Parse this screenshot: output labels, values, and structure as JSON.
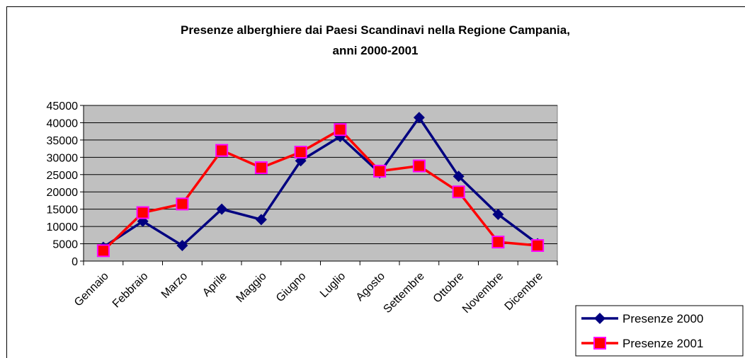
{
  "chart_data": {
    "type": "line",
    "title": [
      "Presenze alberghiere dai Paesi Scandinavi nella Regione Campania,",
      "anni 2000-2001"
    ],
    "categories": [
      "Gennaio",
      "Febbraio",
      "Marzo",
      "Aprile",
      "Maggio",
      "Giugno",
      "Luglio",
      "Agosto",
      "Settembre",
      "Ottobre",
      "Novembre",
      "Dicembre"
    ],
    "series": [
      {
        "name": "Presenze 2000",
        "color": "#000080",
        "marker_color": "#000080",
        "marker": "diamond",
        "values": [
          4000,
          11500,
          4500,
          15000,
          12000,
          29000,
          36000,
          25500,
          41500,
          24500,
          13500,
          5000
        ]
      },
      {
        "name": "Presenze 2001",
        "color": "#ff0000",
        "marker_color": "#ff00ff",
        "marker": "square",
        "values": [
          3000,
          14000,
          16500,
          32000,
          27000,
          31500,
          38000,
          26000,
          27500,
          20000,
          5500,
          4500
        ]
      }
    ],
    "ylim": [
      0,
      45000
    ],
    "yticks": [
      0,
      5000,
      10000,
      15000,
      20000,
      25000,
      30000,
      35000,
      40000,
      45000
    ],
    "grid": true,
    "plot_background": "#c0c0c0",
    "legend": "bottom-right"
  }
}
